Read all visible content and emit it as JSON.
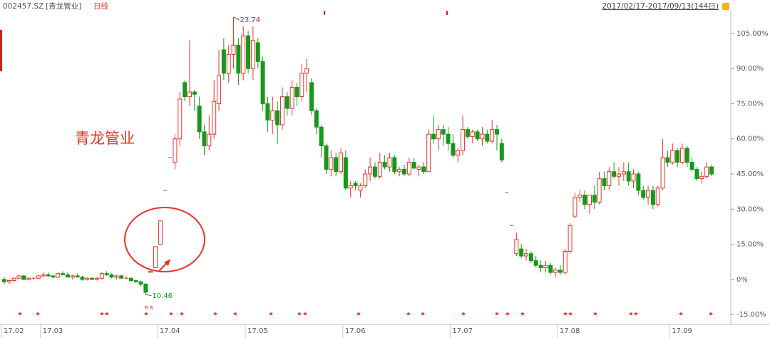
{
  "header": {
    "code": "002457.SZ",
    "name": "[青龙管业]",
    "period": "日线",
    "range": "2017/02/17-2017/09/13(144日)"
  },
  "chart_data": {
    "type": "candlestick",
    "annotation": "青龙管业",
    "max_label": "23.74",
    "min_label": "10.46",
    "markers_text": [
      "R",
      "R"
    ],
    "up_color": "#e8332a",
    "down_color": "#16991a",
    "ylim": [
      -18.3,
      114.7
    ],
    "yticks": [
      {
        "value": 105,
        "label": "105.00%"
      },
      {
        "value": 90,
        "label": "90.00%"
      },
      {
        "value": 75,
        "label": "75.00%"
      },
      {
        "value": 60,
        "label": "60.00%"
      },
      {
        "value": 45,
        "label": "45.00%"
      },
      {
        "value": 30,
        "label": "30.00%"
      },
      {
        "value": 15,
        "label": "15.00%"
      },
      {
        "value": 0,
        "label": "0%"
      },
      {
        "value": -15,
        "label": "-15.00%"
      }
    ],
    "categories": [
      "17.02",
      null,
      null,
      null,
      null,
      null,
      null,
      null,
      "17.03",
      null,
      null,
      null,
      null,
      null,
      null,
      null,
      null,
      null,
      null,
      null,
      null,
      null,
      null,
      null,
      null,
      null,
      null,
      null,
      null,
      null,
      null,
      null,
      "17.04",
      null,
      null,
      null,
      null,
      null,
      null,
      null,
      null,
      null,
      null,
      null,
      null,
      null,
      null,
      null,
      null,
      null,
      "17.05",
      null,
      null,
      null,
      null,
      null,
      null,
      null,
      null,
      null,
      null,
      null,
      null,
      null,
      null,
      null,
      null,
      null,
      null,
      null,
      "17.06",
      null,
      null,
      null,
      null,
      null,
      null,
      null,
      null,
      null,
      null,
      null,
      null,
      null,
      null,
      null,
      null,
      null,
      null,
      null,
      null,
      null,
      "17.07",
      null,
      null,
      null,
      null,
      null,
      null,
      null,
      null,
      null,
      null,
      null,
      null,
      null,
      null,
      null,
      null,
      null,
      null,
      null,
      null,
      null,
      "17.08",
      null,
      null,
      null,
      null,
      null,
      null,
      null,
      null,
      null,
      null,
      null,
      null,
      null,
      null,
      null,
      null,
      null,
      null,
      null,
      null,
      null,
      null,
      "17.09",
      null,
      null,
      null,
      null,
      null,
      null,
      null,
      null
    ],
    "open": [
      0,
      -1,
      -0.5,
      0.5,
      1.5,
      0,
      0.5,
      0.5,
      1.5,
      2,
      1.5,
      1,
      2.5,
      2,
      1,
      1.5,
      1,
      0,
      0.5,
      0,
      0.5,
      2.5,
      2,
      1,
      1.5,
      0.5,
      0.5,
      -0.5,
      -1,
      -2,
      3,
      5,
      15,
      38,
      52,
      50,
      60,
      84,
      78,
      80,
      74,
      63,
      57,
      62,
      75,
      98,
      88,
      96,
      100,
      88,
      104,
      90,
      101,
      93,
      75,
      68,
      72,
      66,
      78,
      73,
      82,
      78,
      88,
      84,
      72,
      65,
      57,
      47,
      52,
      46,
      52,
      39,
      41,
      38,
      40,
      45,
      48,
      44,
      50,
      48,
      52,
      46,
      47,
      45,
      50,
      47,
      48,
      46,
      62,
      60,
      64,
      62,
      58,
      53,
      55,
      64,
      61,
      63,
      60,
      62,
      59,
      64,
      58,
      37,
      23,
      11,
      13,
      10,
      11,
      8,
      6,
      5,
      6,
      3,
      4,
      3,
      12,
      27,
      35,
      36,
      32,
      36,
      33,
      43,
      40,
      46,
      44,
      45,
      46,
      42,
      45,
      38,
      35,
      38,
      32,
      39,
      52,
      50,
      55,
      50,
      56,
      50,
      47,
      43,
      44,
      48
    ],
    "high": [
      1,
      0,
      1,
      2,
      2,
      1,
      1,
      2,
      3,
      3,
      2,
      3,
      3.5,
      3,
      2,
      2.5,
      1.5,
      1,
      1,
      1,
      3,
      3.5,
      2.5,
      2,
      2,
      1.5,
      1,
      0,
      -0.5,
      -1.5,
      4,
      14,
      25,
      38,
      52,
      62,
      80,
      85,
      102,
      81,
      78,
      66,
      70,
      85,
      98,
      103,
      100,
      112,
      103,
      108,
      106,
      108,
      103,
      95,
      78,
      78,
      76,
      82,
      80,
      85,
      84,
      92,
      94,
      86,
      73,
      66,
      58,
      55,
      54,
      56,
      55,
      42,
      42,
      41,
      47,
      52,
      50,
      54,
      53,
      54,
      53,
      48,
      49,
      52,
      52,
      49,
      50,
      64,
      70,
      66,
      66,
      65,
      62,
      56,
      70,
      65,
      64,
      64,
      65,
      64,
      68,
      66,
      60,
      37,
      23,
      20,
      15,
      13,
      12,
      10,
      8,
      8,
      7,
      5,
      6,
      13,
      24,
      37,
      38,
      38,
      36,
      40,
      46,
      46,
      48,
      50,
      48,
      50,
      50,
      47,
      46,
      40,
      40,
      40,
      40,
      60,
      55,
      58,
      56,
      58,
      57,
      52,
      48,
      46,
      50,
      49
    ],
    "low": [
      -2,
      -2,
      -1,
      0,
      0,
      -0.5,
      0,
      0,
      1,
      1,
      0.5,
      0.5,
      2,
      1,
      0,
      1,
      -0.5,
      -0.5,
      0,
      -0.5,
      0,
      1.5,
      0.5,
      0,
      0.5,
      0,
      -1,
      -1.5,
      -3,
      -6.4,
      3,
      5,
      15,
      38,
      52,
      47,
      57,
      76,
      74,
      72,
      60,
      53,
      55,
      60,
      72,
      85,
      84,
      90,
      83,
      85,
      88,
      85,
      90,
      72,
      63,
      62,
      58,
      64,
      70,
      70,
      74,
      76,
      80,
      70,
      62,
      52,
      45,
      44,
      44,
      45,
      38,
      35,
      38,
      35,
      39,
      42,
      43,
      43,
      47,
      46,
      45,
      44,
      44,
      44,
      47,
      44,
      45,
      46,
      58,
      55,
      57,
      55,
      52,
      50,
      53,
      60,
      58,
      59,
      57,
      58,
      58,
      55,
      50,
      37,
      23,
      10,
      9,
      8,
      7,
      5,
      3,
      3,
      2,
      1,
      2,
      2,
      11,
      26,
      33,
      30,
      28,
      30,
      32,
      38,
      38,
      43,
      40,
      42,
      40,
      39,
      36,
      34,
      32,
      30,
      31,
      38,
      48,
      49,
      48,
      49,
      48,
      46,
      42,
      41,
      43,
      44
    ],
    "close": [
      -1,
      -0.5,
      0.5,
      1.5,
      0,
      0.5,
      0.5,
      1.5,
      2,
      1.5,
      1,
      2.5,
      2,
      1,
      1.5,
      1,
      0,
      0.5,
      0,
      0.5,
      2.5,
      2,
      1,
      1.5,
      0.5,
      0.5,
      -0.5,
      -1,
      -2,
      -5.5,
      3.5,
      14,
      25,
      38,
      52,
      60,
      77,
      78,
      80,
      79,
      63,
      57,
      62,
      76,
      87,
      88,
      96,
      100,
      88,
      104,
      90,
      102,
      93,
      75,
      68,
      72,
      66,
      78,
      73,
      82,
      78,
      88,
      90,
      72,
      65,
      57,
      47,
      52,
      46,
      54,
      39,
      40,
      40,
      40,
      45,
      48,
      44,
      50,
      48,
      52,
      46,
      47,
      45,
      50,
      47.5,
      48,
      46,
      62,
      60,
      64,
      62,
      58,
      53,
      55,
      64,
      61,
      63,
      60,
      62,
      59,
      64,
      62,
      51,
      37,
      23,
      17,
      10,
      11,
      8,
      6,
      5,
      6,
      3,
      4,
      3,
      12,
      23,
      35,
      36,
      32,
      36,
      33,
      43,
      40,
      46,
      44,
      45,
      46,
      42,
      45,
      38,
      35,
      38,
      32,
      39,
      52,
      50,
      55,
      50,
      56,
      50,
      47,
      43,
      44,
      48,
      45
    ]
  }
}
